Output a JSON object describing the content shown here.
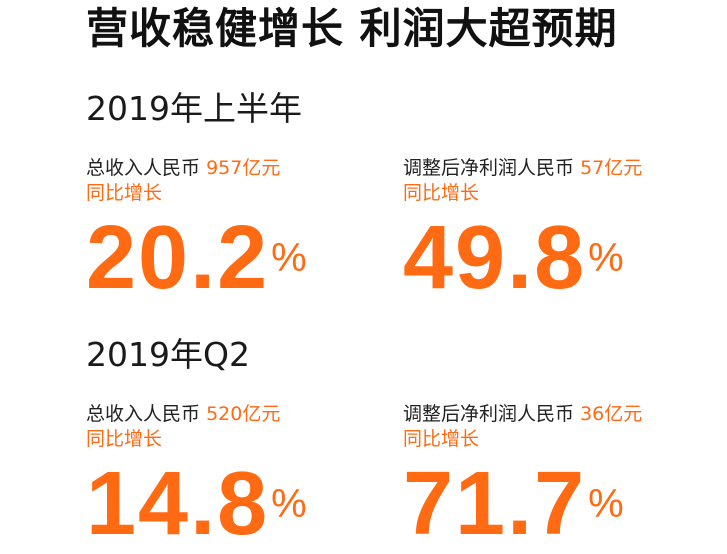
{
  "headline": "营收稳健增长 利润大超预期",
  "accent_color": "#ff6a13",
  "sections": [
    {
      "period": "2019年上半年",
      "metrics": [
        {
          "label": "总收入人民币",
          "amount": "957亿元",
          "change_label": "同比增长",
          "value": "20.2",
          "unit": "%"
        },
        {
          "label": "调整后净利润人民币",
          "amount": "57亿元",
          "change_label": "同比增长",
          "value": "49.8",
          "unit": "%"
        }
      ]
    },
    {
      "period": "2019年Q2",
      "metrics": [
        {
          "label": "总收入人民币",
          "amount": "520亿元",
          "change_label": "同比增长",
          "value": "14.8",
          "unit": "%"
        },
        {
          "label": "调整后净利润人民币",
          "amount": "36亿元",
          "change_label": "同比增长",
          "value": "71.7",
          "unit": "%"
        }
      ]
    }
  ]
}
